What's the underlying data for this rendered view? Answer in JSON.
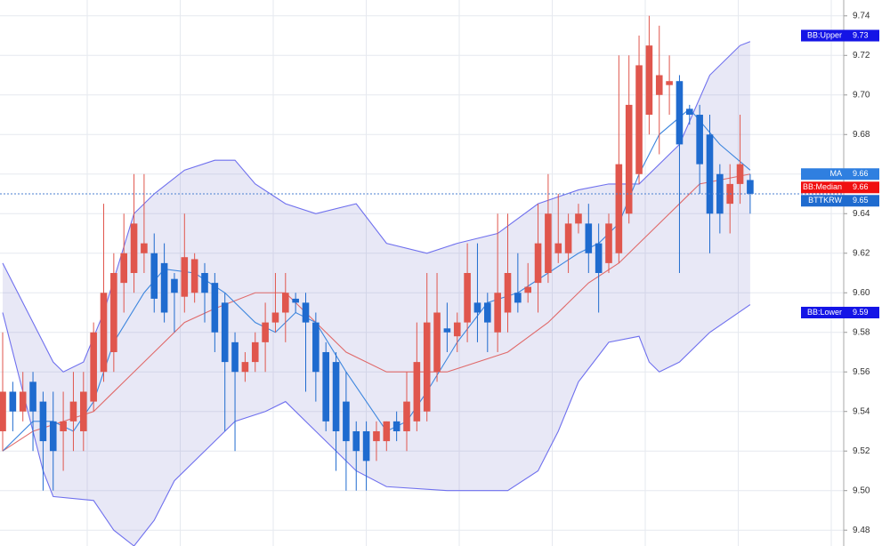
{
  "chart_data": {
    "type": "candlestick",
    "up_color": "#e0564d",
    "down_color": "#1f6bcf",
    "ylim": [
      9.472,
      9.748
    ],
    "yticks": [
      9.48,
      {
        "value": 9.5,
        "label": "9.50"
      },
      9.52,
      9.54,
      9.56,
      9.58,
      {
        "value": 9.6,
        "label": "9.60"
      },
      9.62,
      9.64,
      9.66,
      9.68,
      {
        "value": 9.7,
        "label": "9.70"
      },
      9.72,
      9.74
    ],
    "grid": true,
    "ohlc": [
      [
        9.53,
        9.58,
        9.52,
        9.55
      ],
      [
        9.55,
        9.555,
        9.53,
        9.54
      ],
      [
        9.54,
        9.56,
        9.535,
        9.55
      ],
      [
        9.555,
        9.56,
        9.52,
        9.54
      ],
      [
        9.545,
        9.55,
        9.5,
        9.525
      ],
      [
        9.535,
        9.55,
        9.5,
        9.52
      ],
      [
        9.53,
        9.55,
        9.51,
        9.535
      ],
      [
        9.535,
        9.56,
        9.52,
        9.545
      ],
      [
        9.53,
        9.56,
        9.52,
        9.55
      ],
      [
        9.545,
        9.585,
        9.54,
        9.58
      ],
      [
        9.56,
        9.645,
        9.555,
        9.6
      ],
      [
        9.57,
        9.62,
        9.56,
        9.61
      ],
      [
        9.605,
        9.64,
        9.59,
        9.62
      ],
      [
        9.61,
        9.66,
        9.6,
        9.635
      ],
      [
        9.62,
        9.66,
        9.61,
        9.625
      ],
      [
        9.62,
        9.63,
        9.59,
        9.597
      ],
      [
        9.615,
        9.625,
        9.585,
        9.59
      ],
      [
        9.607,
        9.61,
        9.58,
        9.6
      ],
      [
        9.598,
        9.64,
        9.59,
        9.618
      ],
      [
        9.6,
        9.62,
        9.595,
        9.617
      ],
      [
        9.61,
        9.615,
        9.585,
        9.6
      ],
      [
        9.605,
        9.61,
        9.57,
        9.58
      ],
      [
        9.595,
        9.6,
        9.53,
        9.565
      ],
      [
        9.575,
        9.58,
        9.52,
        9.56
      ],
      [
        9.56,
        9.57,
        9.555,
        9.565
      ],
      [
        9.565,
        9.58,
        9.56,
        9.575
      ],
      [
        9.575,
        9.595,
        9.56,
        9.585
      ],
      [
        9.585,
        9.61,
        9.58,
        9.59
      ],
      [
        9.59,
        9.61,
        9.575,
        9.6
      ],
      [
        9.597,
        9.6,
        9.59,
        9.595
      ],
      [
        9.595,
        9.6,
        9.55,
        9.585
      ],
      [
        9.585,
        9.59,
        9.545,
        9.56
      ],
      [
        9.57,
        9.575,
        9.53,
        9.535
      ],
      [
        9.565,
        9.57,
        9.51,
        9.53
      ],
      [
        9.545,
        9.56,
        9.5,
        9.525
      ],
      [
        9.53,
        9.535,
        9.5,
        9.52
      ],
      [
        9.53,
        9.535,
        9.5,
        9.515
      ],
      [
        9.525,
        9.535,
        9.515,
        9.53
      ],
      [
        9.525,
        9.535,
        9.52,
        9.535
      ],
      [
        9.535,
        9.54,
        9.525,
        9.53
      ],
      [
        9.53,
        9.56,
        9.52,
        9.545
      ],
      [
        9.535,
        9.585,
        9.53,
        9.565
      ],
      [
        9.54,
        9.61,
        9.535,
        9.585
      ],
      [
        9.56,
        9.61,
        9.555,
        9.59
      ],
      [
        9.582,
        9.595,
        9.57,
        9.58
      ],
      [
        9.578,
        9.59,
        9.57,
        9.585
      ],
      [
        9.585,
        9.625,
        9.575,
        9.61
      ],
      [
        9.595,
        9.625,
        9.575,
        9.59
      ],
      [
        9.595,
        9.6,
        9.57,
        9.585
      ],
      [
        9.58,
        9.64,
        9.57,
        9.6
      ],
      [
        9.59,
        9.64,
        9.58,
        9.61
      ],
      [
        9.6,
        9.62,
        9.59,
        9.595
      ],
      [
        9.6,
        9.615,
        9.595,
        9.603
      ],
      [
        9.605,
        9.645,
        9.59,
        9.625
      ],
      [
        9.61,
        9.66,
        9.605,
        9.64
      ],
      [
        9.62,
        9.65,
        9.615,
        9.625
      ],
      [
        9.62,
        9.64,
        9.61,
        9.635
      ],
      [
        9.635,
        9.645,
        9.63,
        9.64
      ],
      [
        9.635,
        9.645,
        9.61,
        9.62
      ],
      [
        9.625,
        9.635,
        9.59,
        9.61
      ],
      [
        9.615,
        9.64,
        9.61,
        9.635
      ],
      [
        9.62,
        9.72,
        9.615,
        9.665
      ],
      [
        9.64,
        9.72,
        9.635,
        9.695
      ],
      [
        9.66,
        9.73,
        9.655,
        9.715
      ],
      [
        9.69,
        9.74,
        9.68,
        9.725
      ],
      [
        9.7,
        9.735,
        9.67,
        9.71
      ],
      [
        9.705,
        9.72,
        9.69,
        9.707
      ],
      [
        9.707,
        9.71,
        9.61,
        9.675
      ],
      [
        9.693,
        9.695,
        9.685,
        9.69
      ],
      [
        9.69,
        9.695,
        9.65,
        9.665
      ],
      [
        9.68,
        9.69,
        9.62,
        9.64
      ],
      [
        9.66,
        9.665,
        9.63,
        9.64
      ],
      [
        9.645,
        9.665,
        9.63,
        9.655
      ],
      [
        9.655,
        9.69,
        9.645,
        9.665
      ],
      [
        9.657,
        9.66,
        9.64,
        9.65
      ]
    ],
    "bollinger": {
      "fill": "rgba(110,110,200,0.16)",
      "edge_color": "#6f70ee",
      "median_color": "#e06a6a",
      "upper": {
        "x": [
          0,
          3,
          5,
          6,
          8,
          10,
          13,
          15,
          18,
          21,
          23,
          25,
          28,
          31,
          35,
          38,
          42,
          45,
          49,
          53,
          57,
          60,
          63,
          67,
          70,
          73,
          74
        ],
        "values": [
          9.615,
          9.585,
          9.565,
          9.56,
          9.565,
          9.59,
          9.64,
          9.65,
          9.662,
          9.667,
          9.667,
          9.655,
          9.645,
          9.64,
          9.645,
          9.625,
          9.62,
          9.625,
          9.63,
          9.645,
          9.652,
          9.655,
          9.655,
          9.675,
          9.71,
          9.725,
          9.727
        ]
      },
      "median": {
        "x": [
          0,
          3,
          6,
          9,
          12,
          15,
          18,
          21,
          25,
          28,
          31,
          34,
          38,
          44,
          50,
          54,
          58,
          61,
          63,
          66,
          69,
          74
        ],
        "values": [
          9.52,
          9.53,
          9.535,
          9.54,
          9.555,
          9.57,
          9.585,
          9.592,
          9.6,
          9.6,
          9.585,
          9.57,
          9.56,
          9.56,
          9.57,
          9.585,
          9.605,
          9.615,
          9.625,
          9.64,
          9.655,
          9.66
        ]
      },
      "lower": {
        "x": [
          0,
          2,
          4,
          5,
          9,
          11,
          13,
          15,
          17,
          20,
          23,
          26,
          28,
          31,
          35,
          38,
          44,
          50,
          53,
          55,
          57,
          60,
          63,
          64,
          65,
          67,
          70,
          74
        ],
        "values": [
          9.59,
          9.55,
          9.51,
          9.497,
          9.495,
          9.48,
          9.472,
          9.485,
          9.505,
          9.52,
          9.535,
          9.54,
          9.545,
          9.53,
          9.51,
          9.502,
          9.5,
          9.5,
          9.51,
          9.53,
          9.555,
          9.575,
          9.578,
          9.565,
          9.56,
          9.565,
          9.58,
          9.594
        ]
      }
    },
    "ma": {
      "color": "#3d86de",
      "x": [
        0,
        3,
        5,
        7,
        9,
        11,
        14,
        16,
        19,
        22,
        25,
        27,
        29,
        31,
        34,
        38,
        40,
        42,
        45,
        48,
        51,
        54,
        57,
        59,
        61,
        63,
        65,
        68,
        71,
        74
      ],
      "values": [
        9.52,
        9.535,
        9.535,
        9.53,
        9.545,
        9.575,
        9.6,
        9.612,
        9.61,
        9.6,
        9.585,
        9.58,
        9.59,
        9.585,
        9.56,
        9.53,
        9.535,
        9.55,
        9.575,
        9.595,
        9.6,
        9.61,
        9.62,
        9.625,
        9.635,
        9.66,
        9.68,
        9.693,
        9.675,
        9.662
      ]
    },
    "price_tags": [
      {
        "name": "BB:Upper",
        "value": 9.73,
        "color": "#1414e6"
      },
      {
        "name": "MA",
        "value": 9.66,
        "color": "#2f7fe0"
      },
      {
        "name": "BB:Median",
        "value": 9.66,
        "color": "#f01010"
      },
      {
        "name": "BTTKRW",
        "value": 9.65,
        "color": "#1f6bcf"
      },
      {
        "name": "BB:Lower",
        "value": 9.59,
        "color": "#1414e6"
      }
    ],
    "last_price_line_color": "#4a7fd0"
  }
}
